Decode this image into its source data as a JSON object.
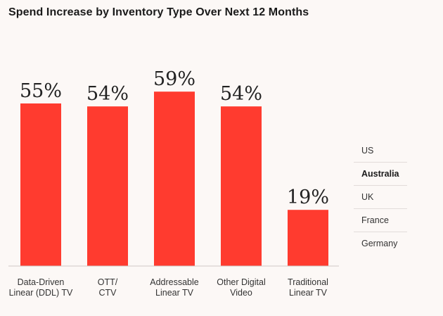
{
  "chart_data": {
    "type": "bar",
    "title": "Spend Increase by Inventory Type Over Next 12 Months",
    "categories": [
      [
        "Data-Driven",
        "Linear (DDL) TV"
      ],
      [
        "OTT/",
        "CTV"
      ],
      [
        "Addressable",
        "Linear TV"
      ],
      [
        "Other Digital",
        "Video"
      ],
      [
        "Traditional",
        "Linear TV"
      ]
    ],
    "values": [
      55,
      54,
      59,
      54,
      19
    ],
    "value_labels": [
      "55%",
      "54%",
      "59%",
      "54%",
      "19%"
    ],
    "ylim": [
      0,
      100
    ],
    "color": "#ff3b2f",
    "grid": false,
    "legend": {
      "placement": "right",
      "items": [
        "US",
        "Australia",
        "UK",
        "France",
        "Germany"
      ],
      "selected": "Australia"
    }
  }
}
